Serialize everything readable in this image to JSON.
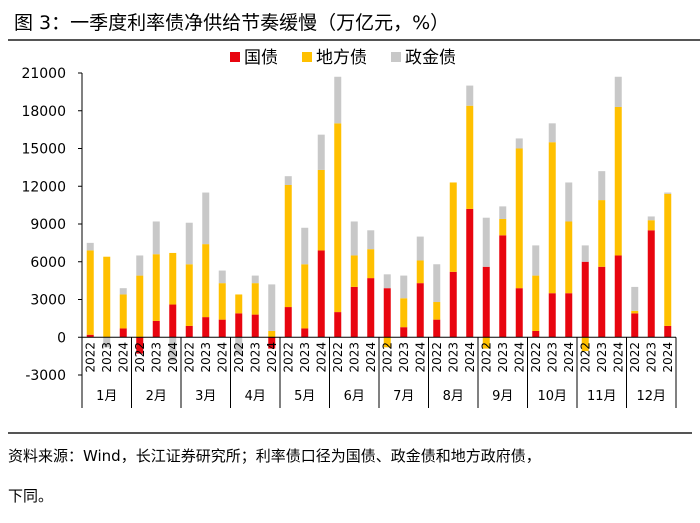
{
  "figure": {
    "title": "图 3：一季度利率债净供给节奏缓慢（万亿元，%）",
    "source_line1": "资料来源：Wind，长江证券研究所；利率债口径为国债、政金债和地方政府债，",
    "source_line2": "下同。"
  },
  "colors": {
    "国债": "#e8050f",
    "地方债": "#ffc000",
    "政金债": "#c8c8c8"
  },
  "chart_data": {
    "type": "bar",
    "stacked": true,
    "title": "",
    "xlabel": "",
    "ylabel": "",
    "ylim": [
      -3000,
      21000
    ],
    "yticks": [
      -3000,
      0,
      3000,
      6000,
      9000,
      12000,
      15000,
      18000,
      21000
    ],
    "grid": false,
    "legend_position": "top-center",
    "years": [
      "2022",
      "2023",
      "2024"
    ],
    "months": [
      "1月",
      "2月",
      "3月",
      "4月",
      "5月",
      "6月",
      "7月",
      "8月",
      "9月",
      "10月",
      "11月",
      "12月"
    ],
    "series": [
      {
        "name": "国债",
        "color": "#e8050f",
        "values": [
          200,
          0,
          700,
          -1300,
          1300,
          2600,
          900,
          1600,
          1400,
          1900,
          1800,
          -900,
          2400,
          700,
          6900,
          2000,
          4000,
          4700,
          3900,
          800,
          4300,
          1400,
          5200,
          10200,
          5600,
          8100,
          3900,
          500,
          3500,
          3500,
          6000,
          5600,
          6500,
          1900,
          8500,
          900
        ]
      },
      {
        "name": "地方债",
        "color": "#ffc000",
        "values": [
          6700,
          6400,
          2700,
          4900,
          5300,
          4100,
          4900,
          5800,
          2900,
          1500,
          2500,
          500,
          9700,
          5100,
          6400,
          15000,
          2500,
          2300,
          -800,
          2300,
          1800,
          1400,
          7100,
          8200,
          -900,
          1300,
          11100,
          4400,
          12000,
          5700,
          -1100,
          5300,
          11800,
          200,
          800,
          10500
        ]
      },
      {
        "name": "政金债",
        "color": "#c8c8c8",
        "values": [
          600,
          -800,
          500,
          1600,
          2600,
          -1900,
          3300,
          4100,
          1000,
          -1400,
          600,
          3700,
          700,
          2900,
          2800,
          3700,
          2700,
          1500,
          1100,
          1800,
          1900,
          3000,
          0,
          1600,
          3900,
          1000,
          800,
          2400,
          1500,
          3100,
          1300,
          2300,
          2400,
          1900,
          300,
          100
        ]
      }
    ]
  }
}
